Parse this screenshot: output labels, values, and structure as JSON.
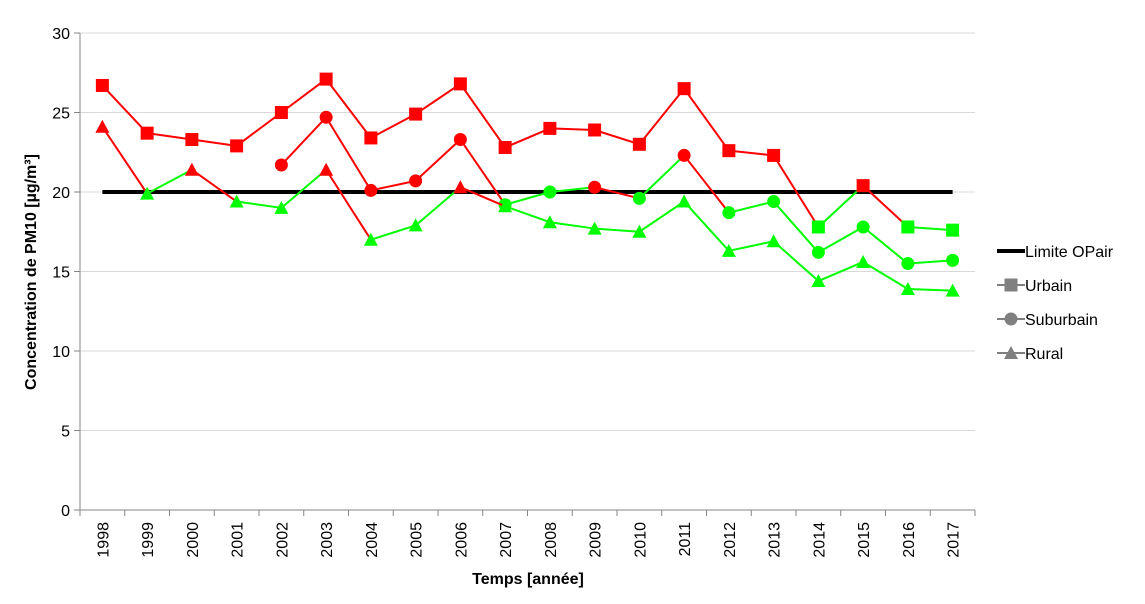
{
  "chart_data": {
    "type": "line",
    "xlabel": "Temps [année]",
    "ylabel": "Concentration de PM10 [µg/m³]",
    "ylim": [
      0,
      30
    ],
    "yticks": [
      0,
      5,
      10,
      15,
      20,
      25,
      30
    ],
    "grid": true,
    "legend_position": "right",
    "categories": [
      "1998",
      "1999",
      "2000",
      "2001",
      "2002",
      "2003",
      "2004",
      "2005",
      "2006",
      "2007",
      "2008",
      "2009",
      "2010",
      "2011",
      "2012",
      "2013",
      "2014",
      "2015",
      "2016",
      "2017"
    ],
    "limit": {
      "name": "Limite OPair",
      "value": 20,
      "color": "#000000"
    },
    "colors": {
      "above_limit": "#ff0000",
      "below_limit": "#00ff00",
      "legend_marker": "#808080"
    },
    "series": [
      {
        "name": "Urbain",
        "marker": "square",
        "values": [
          26.7,
          23.7,
          23.3,
          22.9,
          25.0,
          27.1,
          23.4,
          24.9,
          26.8,
          22.8,
          24.0,
          23.9,
          23.0,
          26.5,
          22.6,
          22.3,
          17.8,
          20.4,
          17.8,
          17.6
        ]
      },
      {
        "name": "Suburbain",
        "marker": "circle",
        "values": [
          null,
          null,
          null,
          null,
          21.7,
          24.7,
          20.1,
          20.7,
          23.3,
          19.2,
          20.0,
          20.3,
          19.6,
          22.3,
          18.7,
          19.4,
          16.2,
          17.8,
          15.5,
          15.7
        ]
      },
      {
        "name": "Rural",
        "marker": "triangle",
        "values": [
          24.1,
          19.9,
          21.4,
          19.4,
          19.0,
          21.4,
          17.0,
          17.9,
          20.3,
          19.1,
          18.1,
          17.7,
          17.5,
          19.4,
          16.3,
          16.9,
          14.4,
          15.6,
          13.9,
          13.8
        ]
      }
    ]
  }
}
